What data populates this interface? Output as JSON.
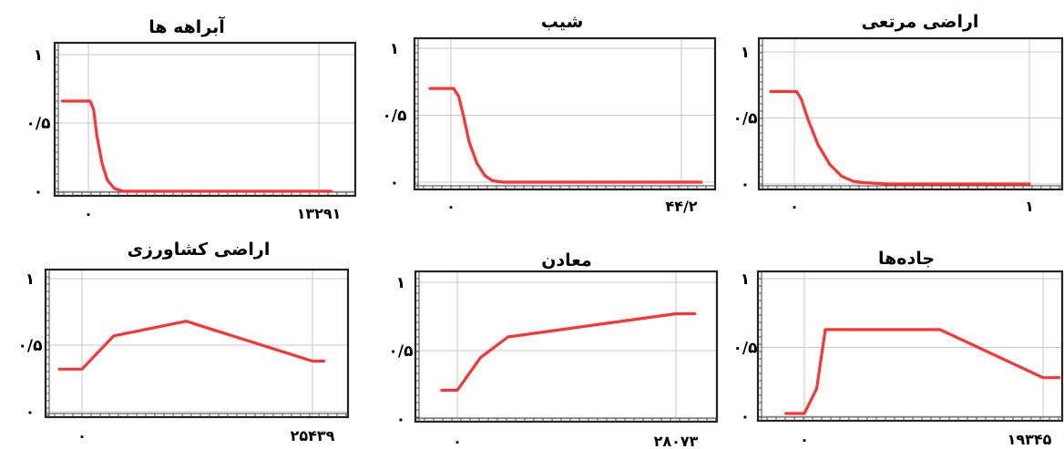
{
  "chart_data": [
    {
      "type": "line",
      "title": "آبراهه ها",
      "xlim": [
        0,
        13291
      ],
      "ylim": [
        0,
        1
      ],
      "x_tick_labels": [
        "۰",
        "۱۳۲۹۱"
      ],
      "y_tick_labels": [
        "۰",
        "۰/۵",
        "۱"
      ],
      "grid": true,
      "series": [
        {
          "color": "#ff3333",
          "x": [
            -1500,
            100,
            300,
            500,
            800,
            1100,
            1500,
            2000,
            3000,
            5000,
            8000,
            11000,
            13291,
            14000
          ],
          "y": [
            0.66,
            0.66,
            0.6,
            0.4,
            0.2,
            0.08,
            0.02,
            0.0,
            0.0,
            0.0,
            0.0,
            0.0,
            0.0,
            0.0
          ]
        }
      ]
    },
    {
      "type": "line",
      "title": "شیب",
      "xlim": [
        0,
        44.2
      ],
      "ylim": [
        0,
        1
      ],
      "x_tick_labels": [
        "۰",
        "۴۴/۲"
      ],
      "y_tick_labels": [
        "۰",
        "۰/۵",
        "۱"
      ],
      "grid": true,
      "series": [
        {
          "color": "#ff3333",
          "x": [
            -4,
            0.5,
            1.5,
            2.5,
            3.5,
            5,
            6.5,
            8,
            10,
            15,
            25,
            35,
            44.2,
            48
          ],
          "y": [
            0.7,
            0.7,
            0.64,
            0.48,
            0.3,
            0.14,
            0.05,
            0.01,
            0.0,
            0.0,
            0.0,
            0.0,
            0.0,
            0.0
          ]
        }
      ]
    },
    {
      "type": "line",
      "title": "اراضی مرتعی",
      "xlim": [
        0,
        1
      ],
      "ylim": [
        0,
        1
      ],
      "x_tick_labels": [
        "۰",
        "۱"
      ],
      "y_tick_labels": [
        "۰",
        "۰/۵",
        "۱"
      ],
      "grid": true,
      "series": [
        {
          "color": "#ff3333",
          "x": [
            -0.1,
            0.01,
            0.03,
            0.06,
            0.1,
            0.15,
            0.2,
            0.25,
            0.3,
            0.4,
            0.6,
            0.8,
            1.0
          ],
          "y": [
            0.7,
            0.7,
            0.64,
            0.48,
            0.3,
            0.15,
            0.06,
            0.02,
            0.01,
            0.0,
            0.0,
            0.0,
            0.0
          ]
        }
      ]
    },
    {
      "type": "line",
      "title": "اراضی کشاورزی",
      "xlim": [
        0,
        25439
      ],
      "ylim": [
        0,
        1
      ],
      "x_tick_labels": [
        "۰",
        "۲۵۴۳۹"
      ],
      "y_tick_labels": [
        "۰",
        "۰/۵",
        "۱"
      ],
      "grid": true,
      "series": [
        {
          "color": "#ff3333",
          "x": [
            -2500,
            0,
            3500,
            11500,
            25439,
            26700
          ],
          "y": [
            0.32,
            0.32,
            0.57,
            0.68,
            0.38,
            0.38
          ]
        }
      ]
    },
    {
      "type": "line",
      "title": "معادن",
      "xlim": [
        0,
        28073
      ],
      "ylim": [
        0,
        1
      ],
      "x_tick_labels": [
        "۰",
        "۲۸۰۷۳"
      ],
      "y_tick_labels": [
        "۰",
        "۰/۵",
        "۱"
      ],
      "grid": true,
      "series": [
        {
          "color": "#ff3333",
          "x": [
            -2000,
            0,
            3000,
            6500,
            28073,
            30500
          ],
          "y": [
            0.21,
            0.21,
            0.45,
            0.6,
            0.77,
            0.77
          ]
        }
      ]
    },
    {
      "type": "line",
      "title": "جاده‌ها",
      "xlim": [
        0,
        19345
      ],
      "ylim": [
        0,
        1
      ],
      "x_tick_labels": [
        "۰",
        "۱۹۳۴۵"
      ],
      "y_tick_labels": [
        "۰",
        "۰/۵",
        "۱"
      ],
      "grid": true,
      "series": [
        {
          "color": "#ff3333",
          "x": [
            -1500,
            0,
            1000,
            1700,
            11000,
            19345,
            20800
          ],
          "y": [
            0.02,
            0.02,
            0.2,
            0.63,
            0.63,
            0.28,
            0.28
          ]
        }
      ]
    }
  ]
}
